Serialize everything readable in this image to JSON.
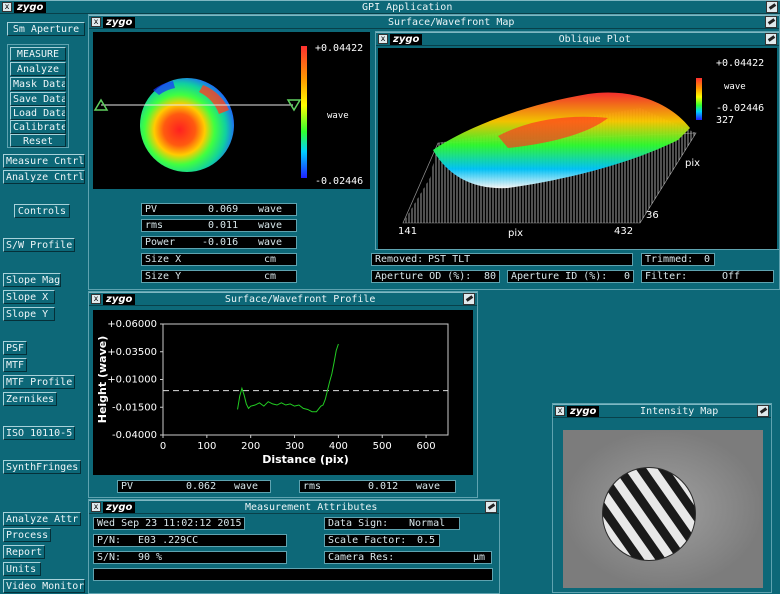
{
  "app": {
    "title": "GPI Application"
  },
  "sidebar": {
    "aperture": "Sm Aperture",
    "measure": "MEASURE",
    "analyze": "Analyze",
    "mask_data": "Mask Data",
    "save_data": "Save Data",
    "load_data": "Load Data",
    "calibrate": "Calibrate",
    "reset": "Reset",
    "measure_cntrl": "Measure Cntrl",
    "analyze_cntrl": "Analyze Cntrl",
    "controls": "Controls",
    "sw_profile": "S/W Profile",
    "slope_mag": "Slope Mag",
    "slope_x": "Slope X",
    "slope_y": "Slope Y",
    "psf": "PSF",
    "mtf": "MTF",
    "mtf_profile": "MTF Profile",
    "zernikes": "Zernikes",
    "iso": "ISO 10110-5",
    "synth": "SynthFringes",
    "analyze_attr": "Analyze Attr",
    "process": "Process",
    "report": "Report",
    "units": "Units",
    "video_monitor": "Video Monitor"
  },
  "map": {
    "title": "Surface/Wavefront Map",
    "scale_max": "+0.04422",
    "scale_unit": "wave",
    "scale_min": "-0.02446",
    "stats": {
      "pv_label": "PV",
      "pv_value": "0.069",
      "pv_unit": "wave",
      "rms_label": "rms",
      "rms_value": "0.011",
      "rms_unit": "wave",
      "power_label": "Power",
      "power_value": "-0.016",
      "power_unit": "wave",
      "sizex_label": "Size X",
      "sizex_unit": "cm",
      "sizey_label": "Size Y",
      "sizey_unit": "cm"
    }
  },
  "oblique": {
    "title": "Oblique Plot",
    "scale_max": "+0.04422",
    "scale_unit": "wave",
    "scale_min": "-0.02446",
    "scale_extra": "327",
    "x_start": "141",
    "x_label": "pix",
    "x_end": "432",
    "y_label": "pix",
    "y_val": "36",
    "removed_label": "Removed:",
    "removed_value": "PST TLT",
    "trimmed_label": "Trimmed:",
    "trimmed_value": "0",
    "ap_od_label": "Aperture OD (%):",
    "ap_od_value": "80",
    "ap_id_label": "Aperture ID (%):",
    "ap_id_value": "0",
    "filter_label": "Filter:",
    "filter_value": "Off"
  },
  "profile": {
    "title": "Surface/Wavefront Profile",
    "pv_label": "PV",
    "pv_value": "0.062",
    "pv_unit": "wave",
    "rms_label": "rms",
    "rms_value": "0.012",
    "rms_unit": "wave"
  },
  "chart_data": {
    "type": "line",
    "title": "",
    "xlabel": "Distance (pix)",
    "ylabel": "Height (wave)",
    "xlim": [
      0,
      650
    ],
    "ylim": [
      -0.04,
      0.06
    ],
    "x_ticks": [
      "0",
      "100",
      "200",
      "300",
      "400",
      "500",
      "600"
    ],
    "y_ticks": [
      "+0.06000",
      "+0.03500",
      "+0.01000",
      "-0.01500",
      "-0.04000"
    ],
    "reference_line": 0.0,
    "grid": false,
    "series": [
      {
        "color": "#22cc22",
        "x": [
          170,
          175,
          180,
          185,
          190,
          195,
          200,
          210,
          220,
          230,
          240,
          250,
          260,
          270,
          280,
          290,
          300,
          310,
          320,
          330,
          340,
          350,
          360,
          365,
          370,
          375,
          380,
          385,
          390,
          395,
          400
        ],
        "y": [
          -0.017,
          -0.005,
          0.002,
          -0.004,
          -0.012,
          -0.016,
          -0.014,
          -0.013,
          -0.011,
          -0.014,
          -0.01,
          -0.012,
          -0.013,
          -0.011,
          -0.013,
          -0.012,
          -0.014,
          -0.013,
          -0.016,
          -0.017,
          -0.019,
          -0.019,
          -0.014,
          -0.013,
          -0.008,
          0.0,
          0.008,
          0.015,
          0.025,
          0.036,
          0.042
        ]
      }
    ]
  },
  "attributes": {
    "title": "Measurement Attributes",
    "date": "Wed Sep 23 11:02:12 2015",
    "data_sign_label": "Data Sign:",
    "data_sign_value": "Normal",
    "pn_label": "P/N:",
    "pn_value": "E03 .229CC",
    "scale_factor_label": "Scale Factor:",
    "scale_factor_value": "0.5",
    "sn_label": "S/N:",
    "sn_value": "90 %",
    "camera_res_label": "Camera Res:",
    "camera_res_unit": "µm"
  },
  "intensity": {
    "title": "Intensity Map"
  }
}
